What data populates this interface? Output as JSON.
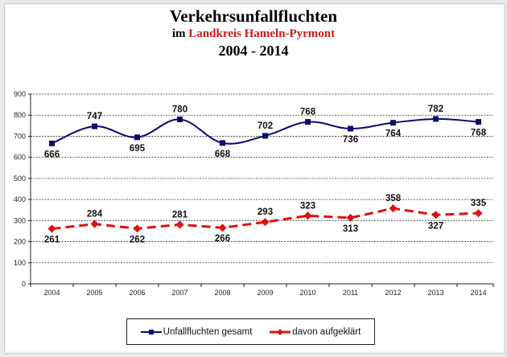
{
  "title": {
    "line1": "Verkehrsunfallfluchten",
    "line2_prefix": "im ",
    "line2_region": "Landkreis Hameln-Pyrmont",
    "line3": "2004 - 2014"
  },
  "colors": {
    "series_total": "#0a0a6e",
    "series_solved": "#e01010",
    "region_text": "#d01b1b"
  },
  "chart_data": {
    "type": "line",
    "title": "Verkehrsunfallfluchten im Landkreis Hameln-Pyrmont 2004 - 2014",
    "xlabel": "",
    "ylabel": "",
    "categories": [
      "2004",
      "2005",
      "2006",
      "2007",
      "2008",
      "2009",
      "2010",
      "2011",
      "2012",
      "2013",
      "2014"
    ],
    "ylim": [
      0,
      900
    ],
    "yticks": [
      0,
      100,
      200,
      300,
      400,
      500,
      600,
      700,
      800,
      900
    ],
    "grid": true,
    "legend_position": "bottom",
    "series": [
      {
        "name": "Unfallfluchten gesamt",
        "values": [
          666,
          747,
          695,
          780,
          668,
          702,
          768,
          736,
          764,
          782,
          768
        ],
        "color": "#0a0a6e",
        "marker": "square",
        "line_style": "solid-smooth"
      },
      {
        "name": "davon aufgeklärt",
        "values": [
          261,
          284,
          262,
          281,
          266,
          293,
          323,
          313,
          358,
          327,
          335
        ],
        "color": "#e01010",
        "marker": "diamond",
        "line_style": "dashed"
      }
    ]
  },
  "legend": {
    "items": [
      {
        "label": "Unfallfluchten gesamt"
      },
      {
        "label": "davon aufgeklärt"
      }
    ]
  }
}
